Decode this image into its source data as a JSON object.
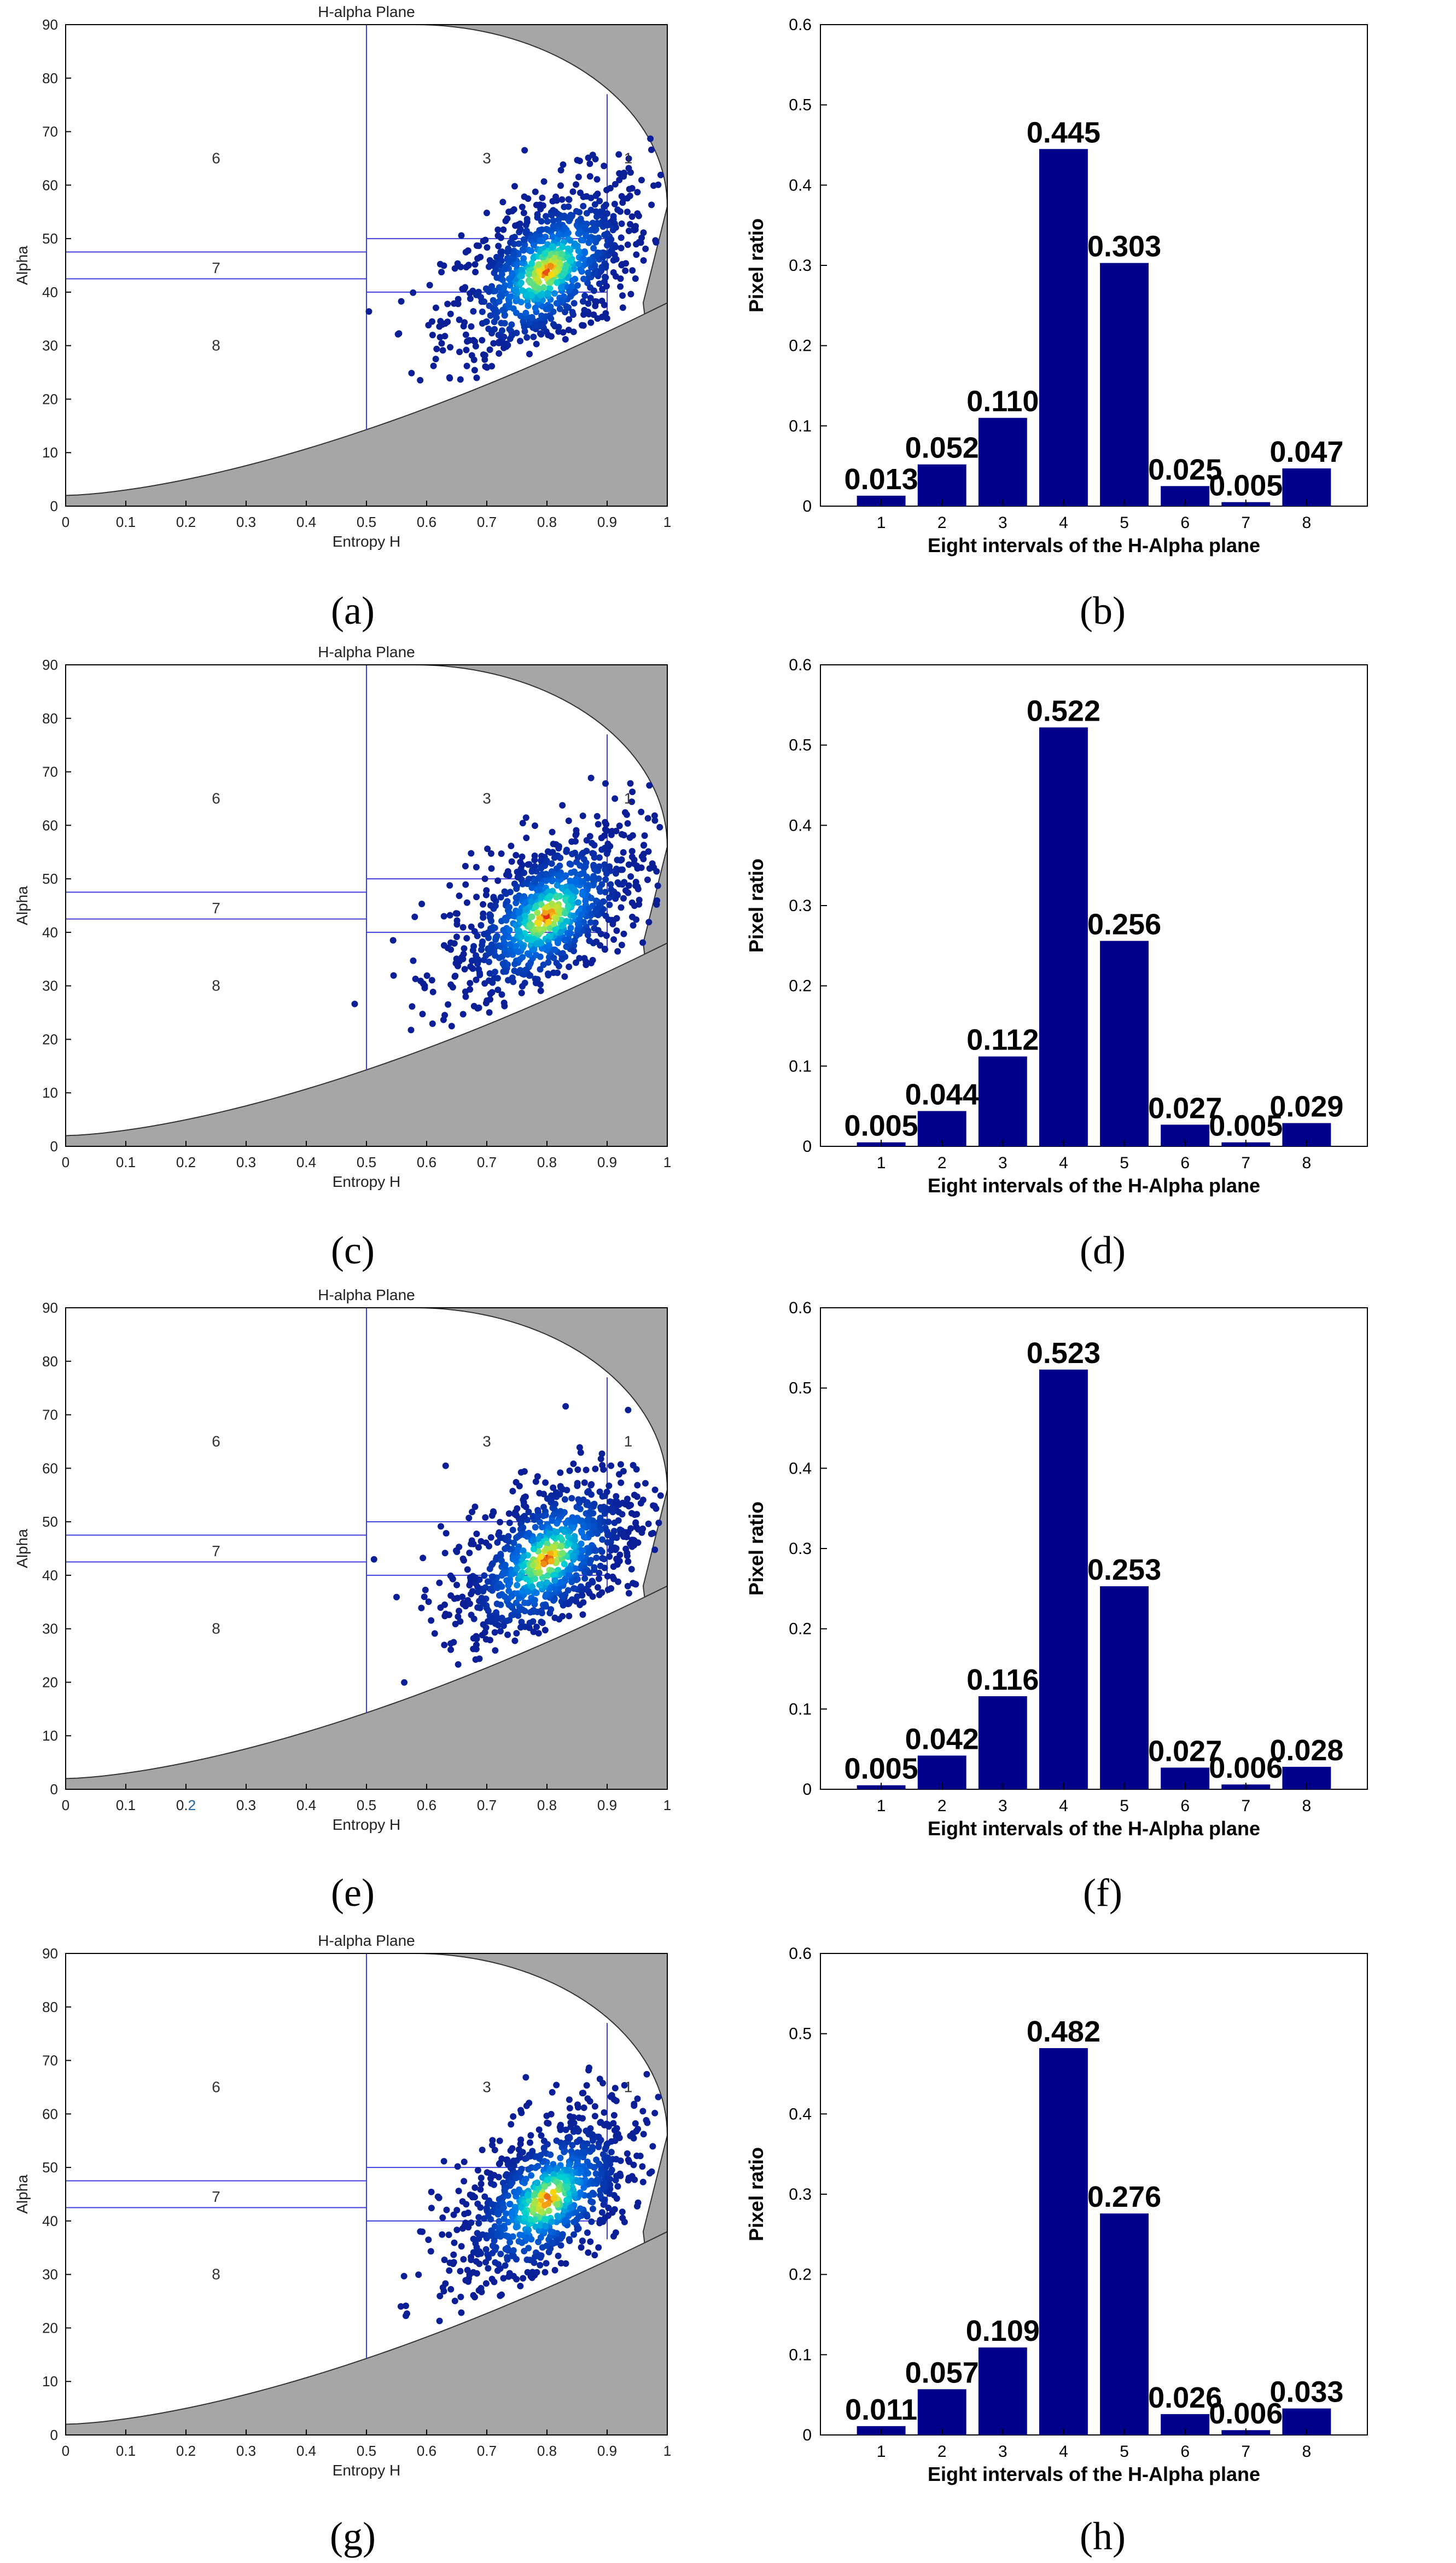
{
  "colors": {
    "bar": "#00008B",
    "axis": "#000000",
    "grid_line": "#3F3FD9",
    "gray_region": "#A6A6A6",
    "points_low": "#0A2AA8",
    "points_high": "#E5231B"
  },
  "panels": [
    {
      "caption": "(a)",
      "scatter": {
        "title": "H-alpha Plane",
        "xlabel": "Entropy H",
        "ylabel": "Alpha",
        "x_ticks": [
          "0",
          "0.1",
          "0.2",
          "0.3",
          "0.4",
          "0.5",
          "0.6",
          "0.7",
          "0.8",
          "0.9",
          "1"
        ],
        "y_ticks": [
          "0",
          "10",
          "20",
          "30",
          "40",
          "50",
          "60",
          "70",
          "80",
          "90"
        ],
        "zone_labels": [
          "1",
          "3",
          "6",
          "7",
          "8"
        ]
      }
    },
    {
      "caption": "(b)"
    },
    {
      "caption": "(c)",
      "scatter": {
        "title": "H-alpha Plane",
        "xlabel": "Entropy H",
        "ylabel": "Alpha",
        "x_ticks": [
          "0",
          "0.1",
          "0.2",
          "0.3",
          "0.4",
          "0.5",
          "0.6",
          "0.7",
          "0.8",
          "0.9",
          "1"
        ],
        "y_ticks": [
          "0",
          "10",
          "20",
          "30",
          "40",
          "50",
          "60",
          "70",
          "80",
          "90"
        ],
        "zone_labels": [
          "1",
          "3",
          "6",
          "7",
          "8"
        ]
      }
    },
    {
      "caption": "(d)"
    },
    {
      "caption": "(e)",
      "scatter": {
        "title": "H-alpha Plane",
        "xlabel": "Entropy H",
        "ylabel": "Alpha",
        "x_ticks": [
          "0",
          "0.1",
          "0.2",
          "0.3",
          "0.4",
          "0.5",
          "0.6",
          "0.7",
          "0.8",
          "0.9",
          "1"
        ],
        "y_ticks": [
          "0",
          "10",
          "20",
          "30",
          "40",
          "50",
          "60",
          "70",
          "80",
          "90"
        ],
        "zone_labels": [
          "1",
          "3",
          "6",
          "7",
          "8"
        ],
        "stray_label": "2"
      }
    },
    {
      "caption": "(f)"
    },
    {
      "caption": "(g)",
      "scatter": {
        "title": "H-alpha Plane",
        "xlabel": "Entropy H",
        "ylabel": "Alpha",
        "x_ticks": [
          "0",
          "0.1",
          "0.2",
          "0.3",
          "0.4",
          "0.5",
          "0.6",
          "0.7",
          "0.8",
          "0.9",
          "1"
        ],
        "y_ticks": [
          "0",
          "10",
          "20",
          "30",
          "40",
          "50",
          "60",
          "70",
          "80",
          "90"
        ],
        "zone_labels": [
          "1",
          "3",
          "6",
          "7",
          "8"
        ]
      }
    },
    {
      "caption": "(h)"
    }
  ],
  "chart_data": [
    {
      "type": "scatter",
      "panel": "(a)",
      "title": "H-alpha Plane",
      "xlabel": "Entropy H",
      "ylabel": "Alpha",
      "xlim": [
        0,
        1
      ],
      "ylim": [
        0,
        90
      ],
      "cluster_center": [
        0.8,
        44
      ],
      "zone_lines": {
        "H": [
          0.5,
          0.9
        ],
        "Alpha": [
          40,
          42.5,
          47.5,
          50
        ]
      }
    },
    {
      "type": "bar",
      "panel": "(b)",
      "categories": [
        "1",
        "2",
        "3",
        "4",
        "5",
        "6",
        "7",
        "8"
      ],
      "values": [
        0.013,
        0.052,
        0.11,
        0.445,
        0.303,
        0.025,
        0.005,
        0.047
      ],
      "value_labels": [
        "0.013",
        "0.052",
        "0.110",
        "0.445",
        "0.303",
        "0.025",
        "0.005",
        "0.047"
      ],
      "xlabel": "Eight intervals of the H-Alpha plane",
      "ylabel": "Pixel ratio",
      "ylim": [
        0,
        0.6
      ],
      "y_ticks": [
        "0",
        "0.1",
        "0.2",
        "0.3",
        "0.4",
        "0.5",
        "0.6"
      ]
    },
    {
      "type": "scatter",
      "panel": "(c)",
      "title": "H-alpha Plane",
      "xlabel": "Entropy H",
      "ylabel": "Alpha",
      "xlim": [
        0,
        1
      ],
      "ylim": [
        0,
        90
      ],
      "cluster_center": [
        0.8,
        43
      ],
      "zone_lines": {
        "H": [
          0.5,
          0.9
        ],
        "Alpha": [
          40,
          42.5,
          47.5,
          50
        ]
      }
    },
    {
      "type": "bar",
      "panel": "(d)",
      "categories": [
        "1",
        "2",
        "3",
        "4",
        "5",
        "6",
        "7",
        "8"
      ],
      "values": [
        0.005,
        0.044,
        0.112,
        0.522,
        0.256,
        0.027,
        0.005,
        0.029
      ],
      "value_labels": [
        "0.005",
        "0.044",
        "0.112",
        "0.522",
        "0.256",
        "0.027",
        "0.005",
        "0.029"
      ],
      "xlabel": "Eight intervals of the H-Alpha plane",
      "ylabel": "Pixel ratio",
      "ylim": [
        0,
        0.6
      ],
      "y_ticks": [
        "0",
        "0.1",
        "0.2",
        "0.3",
        "0.4",
        "0.5",
        "0.6"
      ]
    },
    {
      "type": "scatter",
      "panel": "(e)",
      "title": "H-alpha Plane",
      "xlabel": "Entropy H",
      "ylabel": "Alpha",
      "xlim": [
        0,
        1
      ],
      "ylim": [
        0,
        90
      ],
      "cluster_center": [
        0.8,
        43
      ],
      "zone_lines": {
        "H": [
          0.5,
          0.9
        ],
        "Alpha": [
          40,
          42.5,
          47.5,
          50
        ]
      }
    },
    {
      "type": "bar",
      "panel": "(f)",
      "categories": [
        "1",
        "2",
        "3",
        "4",
        "5",
        "6",
        "7",
        "8"
      ],
      "values": [
        0.005,
        0.042,
        0.116,
        0.523,
        0.253,
        0.027,
        0.006,
        0.028
      ],
      "value_labels": [
        "0.005",
        "0.042",
        "0.116",
        "0.523",
        "0.253",
        "0.027",
        "0.006",
        "0.028"
      ],
      "xlabel": "Eight intervals of the H-Alpha plane",
      "ylabel": "Pixel ratio",
      "ylim": [
        0,
        0.6
      ],
      "y_ticks": [
        "0",
        "0.1",
        "0.2",
        "0.3",
        "0.4",
        "0.5",
        "0.6"
      ]
    },
    {
      "type": "scatter",
      "panel": "(g)",
      "title": "H-alpha Plane",
      "xlabel": "Entropy H",
      "ylabel": "Alpha",
      "xlim": [
        0,
        1
      ],
      "ylim": [
        0,
        90
      ],
      "cluster_center": [
        0.8,
        44
      ],
      "zone_lines": {
        "H": [
          0.5,
          0.9
        ],
        "Alpha": [
          40,
          42.5,
          47.5,
          50
        ]
      }
    },
    {
      "type": "bar",
      "panel": "(h)",
      "categories": [
        "1",
        "2",
        "3",
        "4",
        "5",
        "6",
        "7",
        "8"
      ],
      "values": [
        0.011,
        0.057,
        0.109,
        0.482,
        0.276,
        0.026,
        0.006,
        0.033
      ],
      "value_labels": [
        "0.011",
        "0.057",
        "0.109",
        "0.482",
        "0.276",
        "0.026",
        "0.006",
        "0.033"
      ],
      "xlabel": "Eight intervals of the H-Alpha plane",
      "ylabel": "Pixel ratio",
      "ylim": [
        0,
        0.6
      ],
      "y_ticks": [
        "0",
        "0.1",
        "0.2",
        "0.3",
        "0.4",
        "0.5",
        "0.6"
      ]
    }
  ]
}
